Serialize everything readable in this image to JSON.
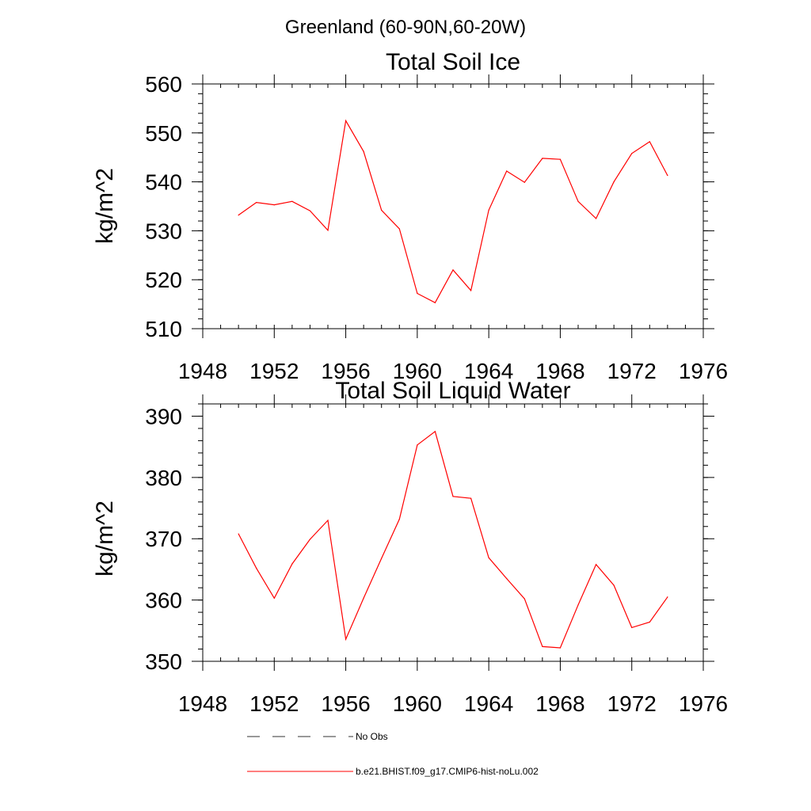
{
  "page": {
    "title": "Greenland (60-90N,60-20W)"
  },
  "legend": {
    "entries": [
      {
        "label": "No Obs",
        "color": "#333333",
        "style": "dashed"
      },
      {
        "label": "b.e21.BHIST.f09_g17.CMIP6-hist-noLu.002",
        "color": "#ff0000",
        "style": "solid"
      }
    ]
  },
  "chart_data": [
    {
      "type": "line",
      "title": "Total Soil Ice",
      "xlabel": "",
      "ylabel": "kg/m^2",
      "xlim": [
        1948,
        1976
      ],
      "ylim": [
        510,
        560
      ],
      "xticks": [
        1948,
        1952,
        1956,
        1960,
        1964,
        1968,
        1972,
        1976
      ],
      "yticks": [
        510,
        520,
        530,
        540,
        550,
        560
      ],
      "grid": false,
      "series": [
        {
          "name": "b.e21.BHIST.f09_g17.CMIP6-hist-noLu.002",
          "color": "#ff0000",
          "x": [
            1950,
            1951,
            1952,
            1953,
            1954,
            1955,
            1956,
            1957,
            1958,
            1959,
            1960,
            1961,
            1962,
            1963,
            1964,
            1965,
            1966,
            1967,
            1968,
            1969,
            1970,
            1971,
            1972,
            1973,
            1974
          ],
          "y": [
            533.2,
            535.8,
            535.3,
            536.0,
            534.1,
            530.1,
            552.5,
            546.2,
            534.2,
            530.4,
            517.2,
            515.3,
            522.0,
            517.8,
            534.2,
            542.2,
            539.9,
            544.8,
            544.6,
            536.0,
            532.5,
            540.0,
            545.8,
            548.2,
            541.3
          ]
        }
      ]
    },
    {
      "type": "line",
      "title": "Total Soil Liquid Water",
      "xlabel": "",
      "ylabel": "kg/m^2",
      "xlim": [
        1948,
        1976
      ],
      "ylim": [
        350,
        392
      ],
      "xticks": [
        1948,
        1952,
        1956,
        1960,
        1964,
        1968,
        1972,
        1976
      ],
      "yticks": [
        350,
        360,
        370,
        380,
        390
      ],
      "grid": false,
      "series": [
        {
          "name": "b.e21.BHIST.f09_g17.CMIP6-hist-noLu.002",
          "color": "#ff0000",
          "x": [
            1950,
            1951,
            1952,
            1953,
            1954,
            1955,
            1956,
            1957,
            1958,
            1959,
            1960,
            1961,
            1962,
            1963,
            1964,
            1965,
            1966,
            1967,
            1968,
            1969,
            1970,
            1971,
            1972,
            1973,
            1974
          ],
          "y": [
            370.8,
            365.2,
            360.3,
            365.9,
            369.9,
            373.0,
            353.6,
            360.3,
            366.8,
            373.2,
            385.3,
            387.5,
            376.9,
            376.6,
            366.9,
            363.5,
            360.2,
            352.4,
            352.2,
            359.2,
            365.8,
            362.4,
            355.5,
            356.4,
            360.5
          ]
        }
      ]
    }
  ]
}
